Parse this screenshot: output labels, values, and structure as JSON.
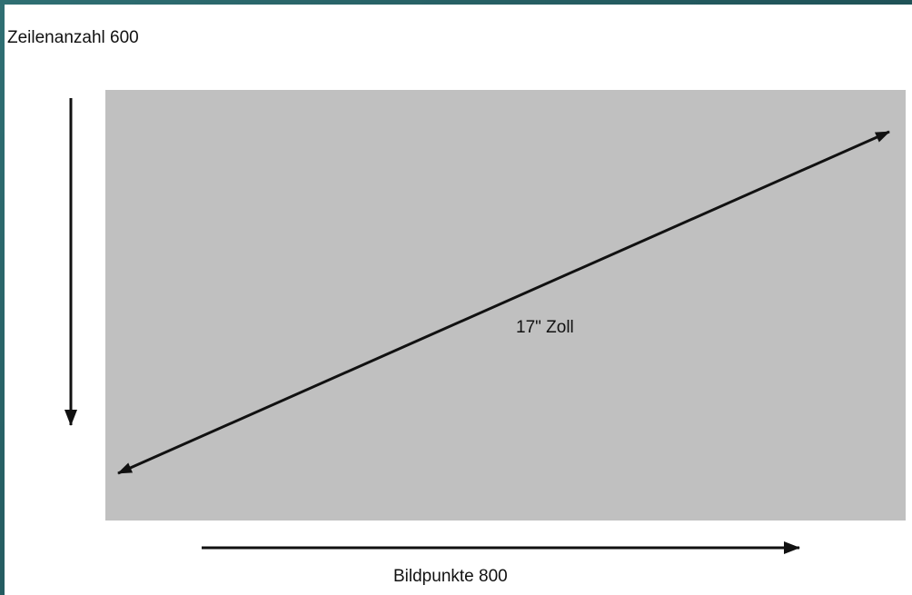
{
  "colors": {
    "frame": "#24595d",
    "panel": "#ffffff",
    "screen": "#c0c0c0",
    "ink": "#111111"
  },
  "labels": {
    "rows": "Zeilenanzahl 600",
    "diagonal": "17\" Zoll",
    "columns": "Bildpunkte 800"
  },
  "icons": {
    "vertical_arrow": "arrow-down-icon",
    "horizontal_arrow": "arrow-right-icon",
    "diagonal_arrow": "double-headed-arrow-icon"
  }
}
